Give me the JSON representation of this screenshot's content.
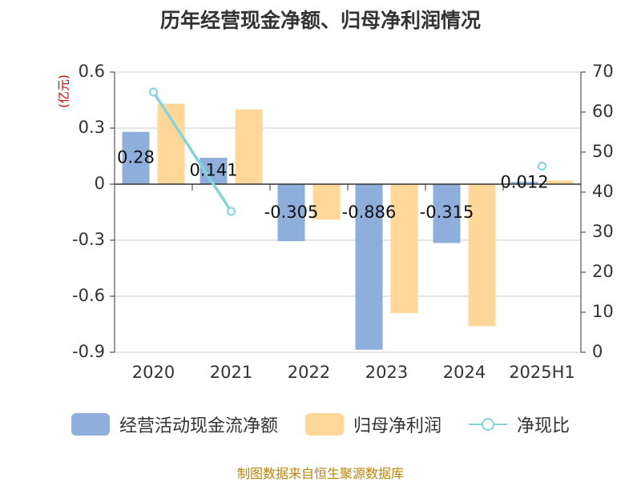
{
  "title": "历年经营现金净额、归母净利润情况",
  "source_note": "制图数据来自恒生聚源数据库",
  "colors": {
    "cash_flow": "#8EAEDB",
    "net_profit": "#FFD899",
    "ratio": "#85D3DB",
    "axis_unit": "#CC0000",
    "source": "#B8860B"
  },
  "chart_data": {
    "type": "bar",
    "title": "历年经营现金净额、归母净利润情况",
    "categories": [
      "2020",
      "2021",
      "2022",
      "2023",
      "2024",
      "2025H1"
    ],
    "y_left": {
      "unit": "(亿元)",
      "ylim": [
        -0.9,
        0.6
      ],
      "ticks": [
        "0.6",
        "0.3",
        "0",
        "-0.3",
        "-0.6",
        "-0.9"
      ]
    },
    "y_right": {
      "ylim": [
        0,
        70
      ],
      "ticks": [
        "70",
        "60",
        "50",
        "40",
        "30",
        "20",
        "10",
        "0"
      ]
    },
    "grid": true,
    "legend_position": "bottom",
    "series": [
      {
        "name": "经营活动现金流净额",
        "kind": "bar",
        "axis": "left",
        "values": [
          0.28,
          0.141,
          -0.305,
          -0.886,
          -0.315,
          0.012
        ],
        "labels": [
          "0.28",
          "0.141",
          "-0.305",
          "-0.886",
          "-0.315",
          "0.012"
        ]
      },
      {
        "name": "归母净利润",
        "kind": "bar",
        "axis": "left",
        "values": [
          0.43,
          0.4,
          -0.19,
          -0.69,
          -0.76,
          0.02
        ]
      },
      {
        "name": "净现比",
        "kind": "line",
        "axis": "right",
        "values": [
          65.0,
          35.2,
          null,
          null,
          null,
          46.5
        ]
      }
    ]
  }
}
